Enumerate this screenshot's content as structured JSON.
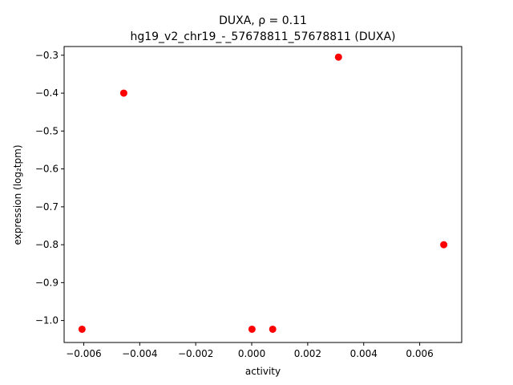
{
  "chart_data": {
    "type": "scatter",
    "title_line1": "DUXA, ρ = 0.11",
    "title_line2": "hg19_v2_chr19_-_57678811_57678811 (DUXA)",
    "xlabel": "activity",
    "ylabel": "expression (log₂tpm)",
    "xlim": [
      -0.0067,
      0.0075
    ],
    "ylim": [
      -1.058,
      -0.277
    ],
    "xticks": [
      {
        "value": -0.006,
        "label": "−0.006"
      },
      {
        "value": -0.004,
        "label": "−0.004"
      },
      {
        "value": -0.002,
        "label": "−0.002"
      },
      {
        "value": 0.0,
        "label": "0.000"
      },
      {
        "value": 0.002,
        "label": "0.002"
      },
      {
        "value": 0.004,
        "label": "0.004"
      },
      {
        "value": 0.006,
        "label": "0.006"
      }
    ],
    "yticks": [
      {
        "value": -0.3,
        "label": "−0.3"
      },
      {
        "value": -0.4,
        "label": "−0.4"
      },
      {
        "value": -0.5,
        "label": "−0.5"
      },
      {
        "value": -0.6,
        "label": "−0.6"
      },
      {
        "value": -0.7,
        "label": "−0.7"
      },
      {
        "value": -0.8,
        "label": "−0.8"
      },
      {
        "value": -0.9,
        "label": "−0.9"
      },
      {
        "value": -1.0,
        "label": "−1.0"
      }
    ],
    "points": [
      {
        "x": -0.00606,
        "y": -1.023
      },
      {
        "x": -0.00457,
        "y": -0.4
      },
      {
        "x": 1e-05,
        "y": -1.023
      },
      {
        "x": 0.00075,
        "y": -1.023
      },
      {
        "x": 0.0031,
        "y": -0.305
      },
      {
        "x": 0.00686,
        "y": -0.8
      }
    ],
    "marker_color": "#ff0000",
    "grid": false
  }
}
